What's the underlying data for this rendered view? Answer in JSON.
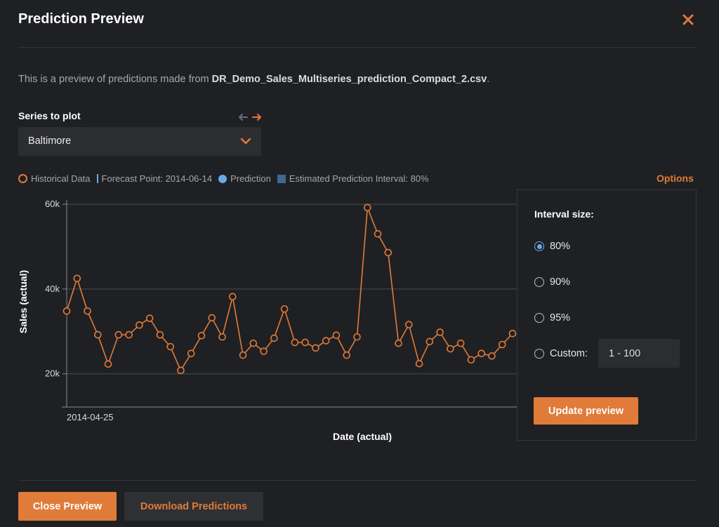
{
  "dialog": {
    "title": "Prediction Preview"
  },
  "description": {
    "prefix": "This is a preview of predictions made from ",
    "filename": "DR_Demo_Sales_Multiseries_prediction_Compact_2.csv",
    "suffix": "."
  },
  "series": {
    "label": "Series to plot",
    "selected": "Baltimore"
  },
  "legend": {
    "historical": "Historical Data",
    "forecast_point": "Forecast Point: 2014-06-14",
    "prediction": "Prediction",
    "interval": "Estimated Prediction Interval: 80%"
  },
  "options_link": "Options",
  "colors": {
    "accent": "#e07b39",
    "prediction": "#6aa8e6",
    "interval": "#3f6893",
    "background": "#1f2023"
  },
  "chart_data": {
    "type": "line",
    "xlabel": "Date (actual)",
    "ylabel": "Sales (actual)",
    "x_tick_labels": [
      "2014-04-25"
    ],
    "y_ticks": [
      "20k",
      "40k",
      "60k"
    ],
    "ylim": [
      12500,
      60500
    ],
    "grid": true,
    "series": [
      {
        "name": "Historical Data",
        "values": [
          34800,
          42500,
          34800,
          29200,
          22300,
          29200,
          29200,
          31500,
          33100,
          29200,
          26400,
          20800,
          24800,
          29000,
          33200,
          28700,
          38200,
          24400,
          27200,
          25300,
          28400,
          35300,
          27400,
          27400,
          26100,
          27800,
          29100,
          24400,
          28700,
          59200,
          53000,
          48600,
          27200,
          31600,
          22400,
          27600,
          29800,
          25900,
          27200,
          23300,
          24800,
          24200,
          26900,
          29500
        ]
      }
    ]
  },
  "options_panel": {
    "title": "Interval size:",
    "options": [
      "80%",
      "90%",
      "95%"
    ],
    "selected": "80%",
    "custom_label": "Custom:",
    "custom_placeholder": "1 - 100",
    "update_button": "Update preview"
  },
  "footer": {
    "close_button": "Close Preview",
    "download_button": "Download Predictions"
  }
}
